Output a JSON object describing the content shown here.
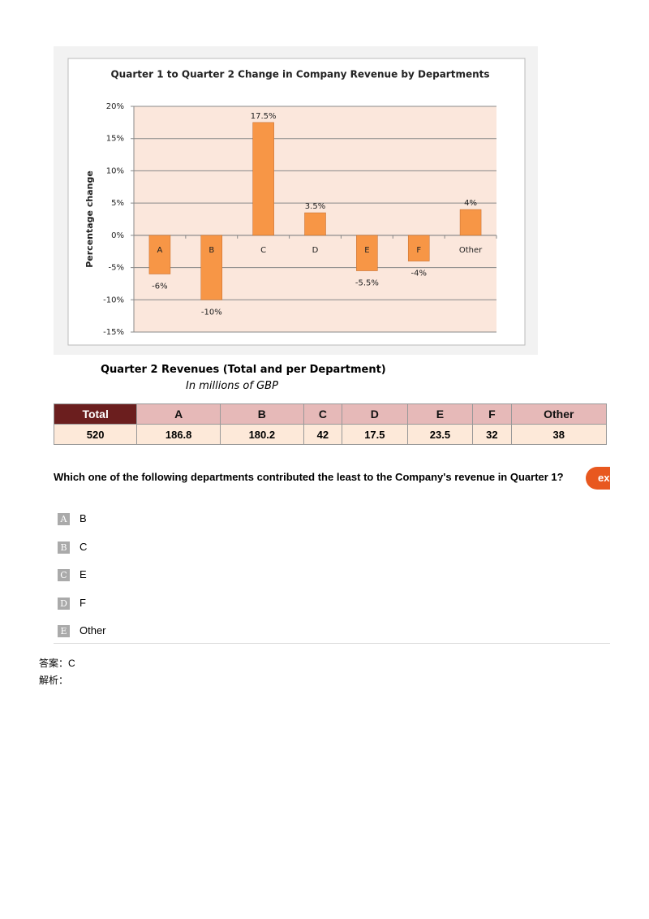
{
  "chart_data": {
    "type": "bar",
    "title": "Quarter 1 to Quarter 2 Change in Company Revenue  by Departments",
    "y_label": "Percentage change",
    "categories": [
      "A",
      "B",
      "C",
      "D",
      "E",
      "F",
      "Other"
    ],
    "values": [
      -6,
      -10,
      17.5,
      3.5,
      -5.5,
      -4,
      4
    ],
    "value_labels": [
      "-6%",
      "-10%",
      "17.5%",
      "3.5%",
      "-5.5%",
      "-4%",
      "4%"
    ],
    "color": "#f79646",
    "ylim": [
      -15,
      20
    ],
    "yticks": [
      {
        "value": 20,
        "label": "20%"
      },
      {
        "value": 15,
        "label": "15%"
      },
      {
        "value": 10,
        "label": "10%"
      },
      {
        "value": 5,
        "label": "5%"
      },
      {
        "value": 0,
        "label": "0%"
      },
      {
        "value": -5,
        "label": "-5%"
      },
      {
        "value": -10,
        "label": "-10%"
      },
      {
        "value": -15,
        "label": "-15%"
      }
    ],
    "grid": true
  },
  "table": {
    "title": "Quarter 2 Revenues (Total and per Department)",
    "subtitle": "In millions of GBP",
    "header": [
      "Total",
      "A",
      "B",
      "C",
      "D",
      "E",
      "F",
      "Other"
    ],
    "rows": [
      [
        "520",
        "186.8",
        "180.2",
        "42",
        "17.5",
        "23.5",
        "32",
        "38"
      ]
    ]
  },
  "question": "Which one of the following departments contributed the least to the Company's revenue in Quarter 1?",
  "button": "ex",
  "options": [
    {
      "letter": "A",
      "text": "B"
    },
    {
      "letter": "B",
      "text": "C"
    },
    {
      "letter": "C",
      "text": "E"
    },
    {
      "letter": "D",
      "text": "F"
    },
    {
      "letter": "E",
      "text": "Other"
    }
  ],
  "answer": {
    "label": "答案：",
    "value": "C"
  },
  "explanation": {
    "label": "解析："
  }
}
